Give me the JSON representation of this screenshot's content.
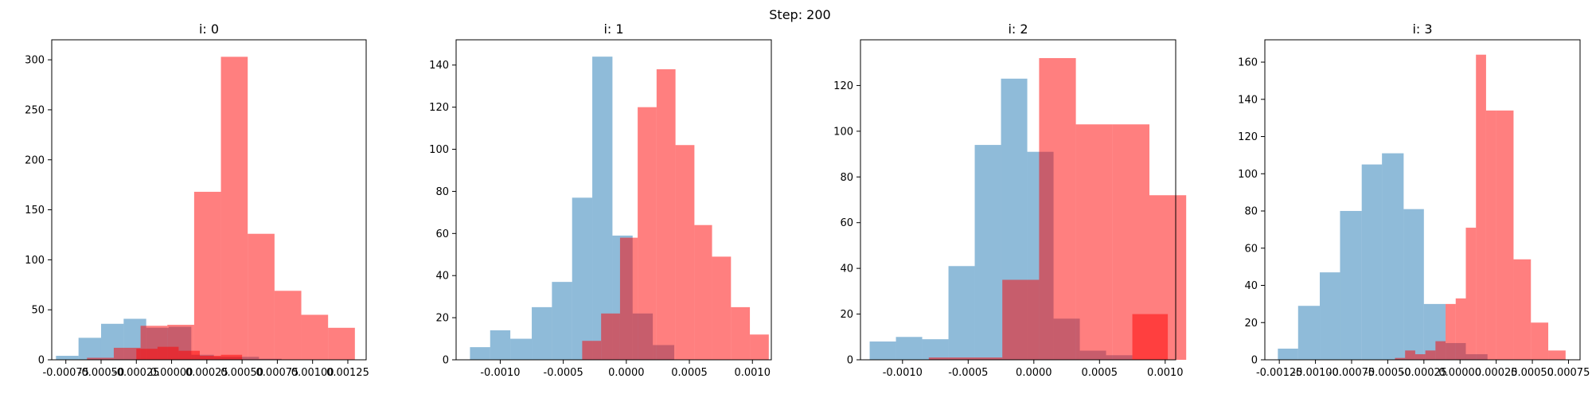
{
  "suptitle": "Step: 200",
  "colors": {
    "series_a": "#1f77b4",
    "series_b": "#ff0000"
  },
  "chart_data": [
    {
      "type": "histogram",
      "title": "i: 0",
      "xlim": [
        -0.00085,
        0.00138
      ],
      "ylim": [
        0,
        320
      ],
      "xticks": [
        "-0.00075",
        "-0.00050",
        "-0.00025",
        "0.00000",
        "0.00025",
        "0.00050",
        "0.00075",
        "0.00100",
        "0.00125"
      ],
      "xtick_values": [
        -0.00075,
        -0.0005,
        -0.00025,
        0,
        0.00025,
        0.0005,
        0.00075,
        0.001,
        0.00125
      ],
      "yticks": [
        0,
        50,
        100,
        150,
        200,
        250,
        300
      ],
      "series": [
        {
          "color": "#1f77b4",
          "edges": [
            -0.00082,
            -0.00066,
            -0.0005,
            -0.00034,
            -0.00018,
            -2e-05,
            0.00014,
            0.0003,
            0.00046,
            0.00062,
            0.00078
          ],
          "counts": [
            4,
            22,
            36,
            41,
            32,
            33,
            5,
            3,
            3,
            1
          ]
        },
        {
          "color": "#ff0000",
          "edges": [
            -0.0006,
            -0.00041,
            -0.00022,
            -3e-05,
            0.00016,
            0.00035,
            0.00054,
            0.00073,
            0.00092,
            0.00111,
            0.0013
          ],
          "counts": [
            2,
            12,
            34,
            35,
            168,
            303,
            126,
            69,
            45,
            32
          ]
        },
        {
          "color": "#ff0000",
          "edges": [
            -0.0004,
            -0.00025,
            -0.0001,
            5e-05,
            0.0002,
            0.00035,
            0.0005
          ],
          "counts": [
            0,
            11,
            13,
            9,
            4,
            5
          ]
        }
      ]
    },
    {
      "type": "histogram",
      "title": "i: 1",
      "xlim": [
        -0.00135,
        0.00115
      ],
      "ylim": [
        0,
        152
      ],
      "xticks": [
        "-0.0010",
        "-0.0005",
        "0.0000",
        "0.0005",
        "0.0010"
      ],
      "xtick_values": [
        -0.001,
        -0.0005,
        0,
        0.0005,
        0.001
      ],
      "yticks": [
        0,
        20,
        40,
        60,
        80,
        100,
        120,
        140
      ],
      "series": [
        {
          "color": "#1f77b4",
          "edges": [
            -0.00124,
            -0.00108,
            -0.00092,
            -0.00075,
            -0.00059,
            -0.00043,
            -0.00027,
            -0.00011,
            5e-05,
            0.00021,
            0.00038
          ],
          "counts": [
            6,
            14,
            10,
            25,
            37,
            77,
            144,
            59,
            22,
            7
          ]
        },
        {
          "color": "#ff0000",
          "edges": [
            -0.00035,
            -0.0002,
            -5e-05,
            9e-05,
            0.00024,
            0.00039,
            0.00054,
            0.00068,
            0.00083,
            0.00098,
            0.00113
          ],
          "counts": [
            9,
            22,
            58,
            120,
            138,
            102,
            64,
            49,
            25,
            12
          ]
        }
      ]
    },
    {
      "type": "histogram",
      "title": "i: 2",
      "xlim": [
        -0.00132,
        0.00108
      ],
      "ylim": [
        0,
        140
      ],
      "xticks": [
        "-0.0010",
        "-0.0005",
        "0.0000",
        "0.0005",
        "0.0010"
      ],
      "xtick_values": [
        -0.001,
        -0.0005,
        0,
        0.0005,
        0.001
      ],
      "yticks": [
        0,
        20,
        40,
        60,
        80,
        100,
        120
      ],
      "series": [
        {
          "color": "#1f77b4",
          "edges": [
            -0.00125,
            -0.00105,
            -0.00085,
            -0.00065,
            -0.00045,
            -0.00025,
            -5e-05,
            0.00015,
            0.00035,
            0.00055,
            0.00075
          ],
          "counts": [
            8,
            10,
            9,
            41,
            94,
            123,
            91,
            18,
            4,
            2
          ]
        },
        {
          "color": "#ff0000",
          "edges": [
            -0.0008,
            -0.00052,
            -0.00024,
            4e-05,
            0.00032,
            0.0006,
            0.00088,
            0.00116
          ],
          "counts": [
            1,
            1,
            35,
            132,
            103,
            103,
            72
          ]
        },
        {
          "color": "#ff0000",
          "edges": [
            0.00075,
            0.00102
          ],
          "counts": [
            20
          ]
        }
      ]
    },
    {
      "type": "histogram",
      "title": "i: 3",
      "xlim": [
        -0.00135,
        0.00083
      ],
      "ylim": [
        0,
        172
      ],
      "xticks": [
        "-0.00125",
        "-0.00100",
        "-0.00075",
        "-0.00050",
        "-0.00025",
        "0.00000",
        "0.00025",
        "0.00050",
        "0.00075"
      ],
      "xtick_values": [
        -0.00125,
        -0.001,
        -0.00075,
        -0.0005,
        -0.00025,
        0,
        0.00025,
        0.0005,
        0.00075
      ],
      "yticks": [
        0,
        20,
        40,
        60,
        80,
        100,
        120,
        140,
        160
      ],
      "series": [
        {
          "color": "#1f77b4",
          "edges": [
            -0.00126,
            -0.00112,
            -0.00097,
            -0.00083,
            -0.00068,
            -0.00054,
            -0.00039,
            -0.00025,
            -0.0001,
            4e-05,
            0.00019
          ],
          "counts": [
            6,
            29,
            47,
            80,
            105,
            111,
            81,
            30,
            9,
            3
          ]
        },
        {
          "color": "#ff0000",
          "edges": [
            -0.00045,
            -0.00038,
            -0.00031,
            -0.00024,
            -0.00017,
            -0.0001,
            -3e-05,
            4e-05,
            0.00011,
            0.00018,
            0.00025
          ],
          "counts": [
            1,
            5,
            3,
            5,
            10,
            30,
            33,
            71,
            164,
            134
          ]
        },
        {
          "color": "#ff0000",
          "edges": [
            0.00025,
            0.00037,
            0.00049,
            0.00061,
            0.00073
          ],
          "counts": [
            134,
            54,
            20,
            5
          ]
        }
      ]
    }
  ]
}
